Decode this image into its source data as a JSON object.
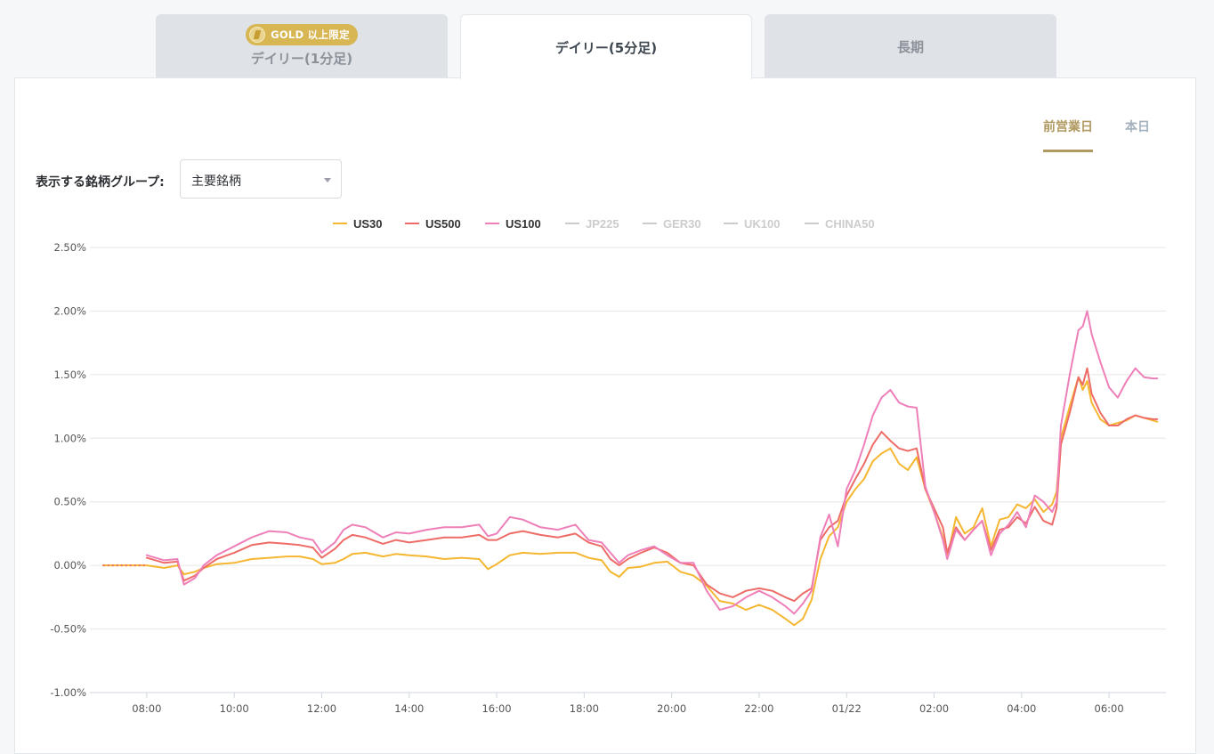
{
  "tabs": [
    {
      "badge": "GOLD 以上限定",
      "label": "デイリー(1分足)"
    },
    {
      "label": "デイリー(5分足)"
    },
    {
      "label": "長期"
    }
  ],
  "day_toggle": {
    "prev": "前営業日",
    "today": "本日"
  },
  "group": {
    "label": "表示する銘柄グループ:",
    "value": "主要銘柄"
  },
  "colors": {
    "US30": "#f5b731",
    "US500": "#ee6c67",
    "US100": "#ee7fb9",
    "inactive": "#cccccc",
    "accent": "#b09a61"
  },
  "chart_data": {
    "type": "line",
    "ylabel": "",
    "xlabel": "",
    "ylim": [
      -1.0,
      2.5
    ],
    "yticks": [
      "2.50%",
      "2.00%",
      "1.50%",
      "1.00%",
      "0.50%",
      "0.00%",
      "-0.50%",
      "-1.00%"
    ],
    "ytick_values": [
      2.5,
      2.0,
      1.5,
      1.0,
      0.5,
      0.0,
      -0.5,
      -1.0
    ],
    "xlim": [
      -1.3,
      23.3
    ],
    "xticks": [
      "08:00",
      "10:00",
      "12:00",
      "14:00",
      "16:00",
      "18:00",
      "20:00",
      "22:00",
      "01/22",
      "02:00",
      "04:00",
      "06:00"
    ],
    "xtick_values": [
      0,
      2,
      4,
      6,
      8,
      10,
      12,
      14,
      16,
      18,
      20,
      22
    ],
    "x_note": "hours since 08:00 on the first day",
    "legend": [
      "US30",
      "US500",
      "US100",
      "JP225",
      "GER30",
      "UK100",
      "CHINA50"
    ],
    "legend_active": [
      true,
      true,
      true,
      false,
      false,
      false,
      false
    ],
    "legend_position": "top-center",
    "grid": true,
    "series": [
      {
        "name": "US30",
        "color": "#f5b731",
        "points": [
          [
            -1.0,
            0.0
          ],
          [
            0.0,
            0.0
          ],
          [
            0.4,
            -0.02
          ],
          [
            0.7,
            0.0
          ],
          [
            0.85,
            -0.07
          ],
          [
            1.1,
            -0.05
          ],
          [
            1.3,
            -0.02
          ],
          [
            1.6,
            0.01
          ],
          [
            2.0,
            0.02
          ],
          [
            2.4,
            0.05
          ],
          [
            2.8,
            0.06
          ],
          [
            3.2,
            0.07
          ],
          [
            3.5,
            0.07
          ],
          [
            3.8,
            0.05
          ],
          [
            4.0,
            0.01
          ],
          [
            4.3,
            0.02
          ],
          [
            4.5,
            0.05
          ],
          [
            4.7,
            0.09
          ],
          [
            5.0,
            0.1
          ],
          [
            5.4,
            0.07
          ],
          [
            5.7,
            0.09
          ],
          [
            6.0,
            0.08
          ],
          [
            6.4,
            0.07
          ],
          [
            6.8,
            0.05
          ],
          [
            7.2,
            0.06
          ],
          [
            7.6,
            0.05
          ],
          [
            7.8,
            -0.03
          ],
          [
            8.0,
            0.01
          ],
          [
            8.3,
            0.08
          ],
          [
            8.6,
            0.1
          ],
          [
            9.0,
            0.09
          ],
          [
            9.4,
            0.1
          ],
          [
            9.8,
            0.1
          ],
          [
            10.1,
            0.06
          ],
          [
            10.4,
            0.04
          ],
          [
            10.6,
            -0.05
          ],
          [
            10.8,
            -0.09
          ],
          [
            11.0,
            -0.02
          ],
          [
            11.3,
            -0.01
          ],
          [
            11.6,
            0.02
          ],
          [
            11.9,
            0.03
          ],
          [
            12.2,
            -0.05
          ],
          [
            12.5,
            -0.08
          ],
          [
            12.8,
            -0.16
          ],
          [
            13.1,
            -0.28
          ],
          [
            13.4,
            -0.3
          ],
          [
            13.7,
            -0.35
          ],
          [
            14.0,
            -0.31
          ],
          [
            14.3,
            -0.35
          ],
          [
            14.6,
            -0.42
          ],
          [
            14.8,
            -0.47
          ],
          [
            15.0,
            -0.42
          ],
          [
            15.2,
            -0.27
          ],
          [
            15.4,
            0.05
          ],
          [
            15.6,
            0.23
          ],
          [
            15.8,
            0.3
          ],
          [
            16.0,
            0.5
          ],
          [
            16.2,
            0.6
          ],
          [
            16.4,
            0.68
          ],
          [
            16.6,
            0.82
          ],
          [
            16.8,
            0.88
          ],
          [
            17.0,
            0.92
          ],
          [
            17.2,
            0.8
          ],
          [
            17.4,
            0.75
          ],
          [
            17.6,
            0.85
          ],
          [
            17.8,
            0.6
          ],
          [
            18.0,
            0.42
          ],
          [
            18.2,
            0.22
          ],
          [
            18.3,
            0.06
          ],
          [
            18.5,
            0.38
          ],
          [
            18.7,
            0.25
          ],
          [
            18.9,
            0.3
          ],
          [
            19.1,
            0.45
          ],
          [
            19.3,
            0.15
          ],
          [
            19.5,
            0.36
          ],
          [
            19.7,
            0.38
          ],
          [
            19.9,
            0.48
          ],
          [
            20.1,
            0.45
          ],
          [
            20.3,
            0.52
          ],
          [
            20.5,
            0.42
          ],
          [
            20.7,
            0.48
          ],
          [
            20.8,
            0.58
          ],
          [
            20.9,
            1.0
          ],
          [
            21.1,
            1.25
          ],
          [
            21.3,
            1.48
          ],
          [
            21.4,
            1.38
          ],
          [
            21.5,
            1.45
          ],
          [
            21.6,
            1.28
          ],
          [
            21.8,
            1.15
          ],
          [
            22.0,
            1.1
          ],
          [
            22.2,
            1.12
          ],
          [
            22.4,
            1.14
          ],
          [
            22.6,
            1.18
          ],
          [
            22.8,
            1.16
          ],
          [
            23.0,
            1.14
          ],
          [
            23.1,
            1.13
          ]
        ]
      },
      {
        "name": "US500",
        "color": "#ee6c67",
        "points": [
          [
            0.0,
            0.06
          ],
          [
            0.4,
            0.02
          ],
          [
            0.7,
            0.03
          ],
          [
            0.85,
            -0.12
          ],
          [
            1.1,
            -0.08
          ],
          [
            1.3,
            -0.02
          ],
          [
            1.6,
            0.05
          ],
          [
            2.0,
            0.1
          ],
          [
            2.4,
            0.16
          ],
          [
            2.8,
            0.18
          ],
          [
            3.2,
            0.17
          ],
          [
            3.5,
            0.16
          ],
          [
            3.8,
            0.14
          ],
          [
            4.0,
            0.06
          ],
          [
            4.3,
            0.13
          ],
          [
            4.5,
            0.2
          ],
          [
            4.7,
            0.24
          ],
          [
            5.0,
            0.22
          ],
          [
            5.4,
            0.17
          ],
          [
            5.7,
            0.2
          ],
          [
            6.0,
            0.18
          ],
          [
            6.4,
            0.2
          ],
          [
            6.8,
            0.22
          ],
          [
            7.2,
            0.22
          ],
          [
            7.6,
            0.24
          ],
          [
            7.8,
            0.2
          ],
          [
            8.0,
            0.2
          ],
          [
            8.3,
            0.25
          ],
          [
            8.6,
            0.27
          ],
          [
            9.0,
            0.24
          ],
          [
            9.4,
            0.22
          ],
          [
            9.8,
            0.25
          ],
          [
            10.1,
            0.18
          ],
          [
            10.4,
            0.15
          ],
          [
            10.6,
            0.05
          ],
          [
            10.8,
            0.0
          ],
          [
            11.0,
            0.05
          ],
          [
            11.3,
            0.1
          ],
          [
            11.6,
            0.14
          ],
          [
            11.9,
            0.1
          ],
          [
            12.2,
            0.02
          ],
          [
            12.5,
            0.0
          ],
          [
            12.8,
            -0.15
          ],
          [
            13.1,
            -0.22
          ],
          [
            13.4,
            -0.25
          ],
          [
            13.7,
            -0.2
          ],
          [
            14.0,
            -0.18
          ],
          [
            14.3,
            -0.2
          ],
          [
            14.6,
            -0.25
          ],
          [
            14.8,
            -0.28
          ],
          [
            15.0,
            -0.22
          ],
          [
            15.2,
            -0.18
          ],
          [
            15.4,
            0.2
          ],
          [
            15.6,
            0.3
          ],
          [
            15.8,
            0.35
          ],
          [
            16.0,
            0.55
          ],
          [
            16.2,
            0.68
          ],
          [
            16.4,
            0.8
          ],
          [
            16.6,
            0.95
          ],
          [
            16.8,
            1.05
          ],
          [
            17.0,
            0.98
          ],
          [
            17.2,
            0.92
          ],
          [
            17.4,
            0.9
          ],
          [
            17.6,
            0.92
          ],
          [
            17.8,
            0.6
          ],
          [
            18.0,
            0.45
          ],
          [
            18.2,
            0.3
          ],
          [
            18.3,
            0.1
          ],
          [
            18.5,
            0.3
          ],
          [
            18.7,
            0.2
          ],
          [
            18.9,
            0.28
          ],
          [
            19.1,
            0.35
          ],
          [
            19.3,
            0.12
          ],
          [
            19.5,
            0.28
          ],
          [
            19.7,
            0.3
          ],
          [
            19.9,
            0.38
          ],
          [
            20.1,
            0.33
          ],
          [
            20.3,
            0.46
          ],
          [
            20.5,
            0.35
          ],
          [
            20.7,
            0.32
          ],
          [
            20.8,
            0.45
          ],
          [
            20.9,
            0.95
          ],
          [
            21.1,
            1.2
          ],
          [
            21.3,
            1.48
          ],
          [
            21.4,
            1.42
          ],
          [
            21.5,
            1.55
          ],
          [
            21.6,
            1.35
          ],
          [
            21.8,
            1.2
          ],
          [
            22.0,
            1.1
          ],
          [
            22.2,
            1.1
          ],
          [
            22.4,
            1.15
          ],
          [
            22.6,
            1.18
          ],
          [
            22.8,
            1.16
          ],
          [
            23.0,
            1.15
          ],
          [
            23.1,
            1.15
          ]
        ]
      },
      {
        "name": "US100",
        "color": "#ee7fb9",
        "points": [
          [
            0.0,
            0.08
          ],
          [
            0.4,
            0.04
          ],
          [
            0.7,
            0.05
          ],
          [
            0.85,
            -0.15
          ],
          [
            1.1,
            -0.1
          ],
          [
            1.3,
            0.0
          ],
          [
            1.6,
            0.08
          ],
          [
            2.0,
            0.15
          ],
          [
            2.4,
            0.22
          ],
          [
            2.8,
            0.27
          ],
          [
            3.2,
            0.26
          ],
          [
            3.5,
            0.22
          ],
          [
            3.8,
            0.2
          ],
          [
            4.0,
            0.1
          ],
          [
            4.3,
            0.18
          ],
          [
            4.5,
            0.28
          ],
          [
            4.7,
            0.32
          ],
          [
            5.0,
            0.3
          ],
          [
            5.4,
            0.22
          ],
          [
            5.7,
            0.26
          ],
          [
            6.0,
            0.25
          ],
          [
            6.4,
            0.28
          ],
          [
            6.8,
            0.3
          ],
          [
            7.2,
            0.3
          ],
          [
            7.6,
            0.32
          ],
          [
            7.8,
            0.23
          ],
          [
            8.0,
            0.25
          ],
          [
            8.3,
            0.38
          ],
          [
            8.6,
            0.36
          ],
          [
            9.0,
            0.3
          ],
          [
            9.4,
            0.28
          ],
          [
            9.8,
            0.32
          ],
          [
            10.1,
            0.2
          ],
          [
            10.4,
            0.18
          ],
          [
            10.6,
            0.1
          ],
          [
            10.8,
            0.02
          ],
          [
            11.0,
            0.08
          ],
          [
            11.3,
            0.12
          ],
          [
            11.6,
            0.15
          ],
          [
            11.9,
            0.08
          ],
          [
            12.2,
            0.02
          ],
          [
            12.5,
            0.02
          ],
          [
            12.8,
            -0.2
          ],
          [
            13.1,
            -0.35
          ],
          [
            13.4,
            -0.32
          ],
          [
            13.7,
            -0.25
          ],
          [
            14.0,
            -0.2
          ],
          [
            14.3,
            -0.25
          ],
          [
            14.6,
            -0.32
          ],
          [
            14.8,
            -0.38
          ],
          [
            15.0,
            -0.3
          ],
          [
            15.2,
            -0.2
          ],
          [
            15.4,
            0.22
          ],
          [
            15.6,
            0.4
          ],
          [
            15.8,
            0.15
          ],
          [
            16.0,
            0.6
          ],
          [
            16.2,
            0.75
          ],
          [
            16.4,
            0.95
          ],
          [
            16.6,
            1.18
          ],
          [
            16.8,
            1.32
          ],
          [
            17.0,
            1.38
          ],
          [
            17.2,
            1.28
          ],
          [
            17.4,
            1.25
          ],
          [
            17.6,
            1.24
          ],
          [
            17.8,
            0.62
          ],
          [
            18.0,
            0.42
          ],
          [
            18.2,
            0.2
          ],
          [
            18.3,
            0.05
          ],
          [
            18.5,
            0.28
          ],
          [
            18.7,
            0.2
          ],
          [
            18.9,
            0.28
          ],
          [
            19.1,
            0.35
          ],
          [
            19.3,
            0.08
          ],
          [
            19.5,
            0.25
          ],
          [
            19.7,
            0.32
          ],
          [
            19.9,
            0.42
          ],
          [
            20.1,
            0.3
          ],
          [
            20.3,
            0.55
          ],
          [
            20.5,
            0.5
          ],
          [
            20.7,
            0.42
          ],
          [
            20.8,
            0.5
          ],
          [
            20.9,
            1.1
          ],
          [
            21.1,
            1.5
          ],
          [
            21.3,
            1.85
          ],
          [
            21.4,
            1.88
          ],
          [
            21.5,
            2.0
          ],
          [
            21.6,
            1.82
          ],
          [
            21.8,
            1.6
          ],
          [
            22.0,
            1.4
          ],
          [
            22.2,
            1.32
          ],
          [
            22.4,
            1.45
          ],
          [
            22.6,
            1.55
          ],
          [
            22.8,
            1.48
          ],
          [
            23.0,
            1.47
          ],
          [
            23.1,
            1.47
          ]
        ]
      }
    ]
  }
}
